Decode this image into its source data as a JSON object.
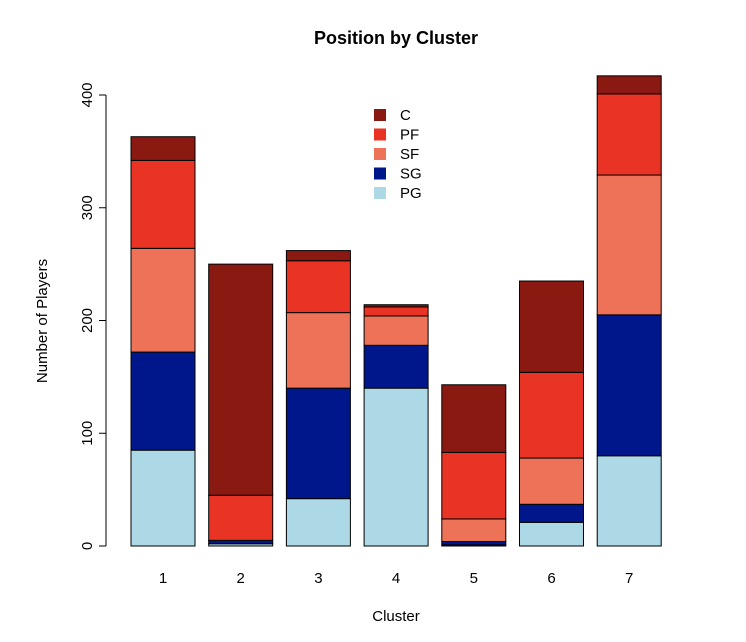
{
  "chart_data": {
    "type": "bar",
    "stacked": true,
    "title": "Position by Cluster",
    "xlabel": "Cluster",
    "ylabel": "Number of Players",
    "categories": [
      "1",
      "2",
      "3",
      "4",
      "5",
      "6",
      "7"
    ],
    "ylim": [
      0,
      420
    ],
    "yticks": [
      0,
      100,
      200,
      300,
      400
    ],
    "legend_position": "top-center",
    "series": [
      {
        "name": "PG",
        "color": "#add8e6",
        "values": [
          85,
          2,
          42,
          140,
          1,
          21,
          80
        ]
      },
      {
        "name": "SG",
        "color": "#00178c",
        "values": [
          87,
          3,
          98,
          38,
          3,
          16,
          125
        ]
      },
      {
        "name": "SF",
        "color": "#ee7257",
        "values": [
          92,
          0,
          67,
          26,
          20,
          41,
          124
        ]
      },
      {
        "name": "PF",
        "color": "#e93324",
        "values": [
          78,
          40,
          46,
          8,
          59,
          76,
          72
        ]
      },
      {
        "name": "C",
        "color": "#8a1911",
        "values": [
          21,
          205,
          9,
          2,
          60,
          81,
          16
        ]
      }
    ],
    "legend_order": [
      "C",
      "PF",
      "SF",
      "SG",
      "PG"
    ]
  }
}
